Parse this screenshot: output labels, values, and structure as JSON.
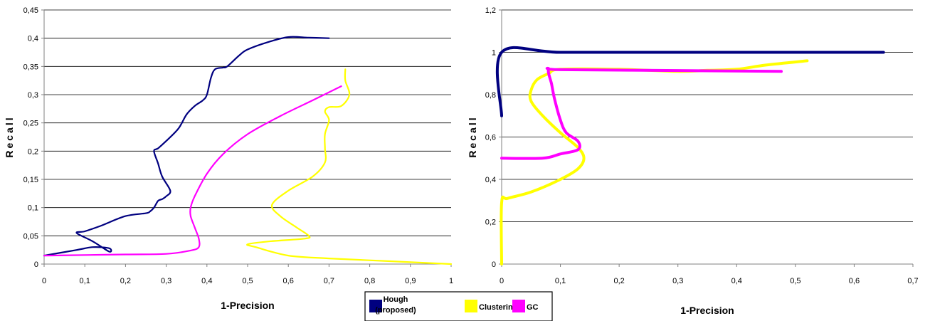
{
  "legend": {
    "items": [
      {
        "label_lines": [
          "Hough",
          "(proposed)"
        ],
        "color": "#000080"
      },
      {
        "label_lines": [
          "Clustering"
        ],
        "color": "#ffff00"
      },
      {
        "label_lines": [
          "GC"
        ],
        "color": "#ff00ff"
      }
    ]
  },
  "chart_data": [
    {
      "type": "line",
      "xlabel": "1-Precision",
      "ylabel": "Recall",
      "xlim": [
        0,
        1
      ],
      "ylim": [
        0,
        0.45
      ],
      "x_ticks": [
        0,
        0.1,
        0.2,
        0.3,
        0.4,
        0.5,
        0.6,
        0.7,
        0.8,
        0.9,
        1
      ],
      "y_ticks": [
        0,
        0.05,
        0.1,
        0.15,
        0.2,
        0.25,
        0.3,
        0.35,
        0.4,
        0.45
      ],
      "x_tick_labels": [
        "0",
        "0,1",
        "0,2",
        "0,3",
        "0,4",
        "0,5",
        "0,6",
        "0,7",
        "0,8",
        "0,9",
        "1"
      ],
      "y_tick_labels": [
        "0",
        "0,05",
        "0,1",
        "0,15",
        "0,2",
        "0,25",
        "0,3",
        "0,35",
        "0,4",
        "0,45"
      ],
      "grid": "horizontal",
      "series": [
        {
          "name": "Hough (proposed)",
          "color": "#000080",
          "x": [
            0.0,
            0.08,
            0.12,
            0.16,
            0.16,
            0.12,
            0.08,
            0.1,
            0.14,
            0.2,
            0.25,
            0.26,
            0.27,
            0.28,
            0.29,
            0.3,
            0.31,
            0.29,
            0.28,
            0.27,
            0.28,
            0.3,
            0.33,
            0.35,
            0.37,
            0.39,
            0.4,
            0.41,
            0.42,
            0.44,
            0.45,
            0.48,
            0.5,
            0.55,
            0.6,
            0.65,
            0.7
          ],
          "y": [
            0.015,
            0.025,
            0.03,
            0.028,
            0.022,
            0.04,
            0.055,
            0.058,
            0.068,
            0.085,
            0.09,
            0.093,
            0.1,
            0.112,
            0.115,
            0.12,
            0.13,
            0.155,
            0.178,
            0.2,
            0.205,
            0.218,
            0.24,
            0.265,
            0.28,
            0.29,
            0.3,
            0.33,
            0.345,
            0.348,
            0.35,
            0.37,
            0.38,
            0.393,
            0.402,
            0.401,
            0.4
          ]
        },
        {
          "name": "Clustering",
          "color": "#ffff00",
          "x": [
            1.0,
            0.85,
            0.7,
            0.6,
            0.52,
            0.5,
            0.55,
            0.64,
            0.65,
            0.62,
            0.58,
            0.56,
            0.6,
            0.66,
            0.69,
            0.69,
            0.69,
            0.7,
            0.69,
            0.7,
            0.73,
            0.75,
            0.74,
            0.74
          ],
          "y": [
            0.0,
            0.005,
            0.01,
            0.015,
            0.03,
            0.035,
            0.04,
            0.045,
            0.05,
            0.065,
            0.085,
            0.105,
            0.13,
            0.155,
            0.18,
            0.205,
            0.23,
            0.255,
            0.27,
            0.278,
            0.28,
            0.3,
            0.325,
            0.345
          ]
        },
        {
          "name": "GC",
          "color": "#ff00ff",
          "x": [
            0.0,
            0.1,
            0.2,
            0.3,
            0.36,
            0.38,
            0.38,
            0.37,
            0.36,
            0.36,
            0.37,
            0.4,
            0.44,
            0.5,
            0.58,
            0.66,
            0.73
          ],
          "y": [
            0.015,
            0.016,
            0.017,
            0.018,
            0.024,
            0.03,
            0.045,
            0.065,
            0.085,
            0.1,
            0.12,
            0.16,
            0.195,
            0.23,
            0.262,
            0.29,
            0.315
          ]
        }
      ]
    },
    {
      "type": "line",
      "xlabel": "1-Precision",
      "ylabel": "Recall",
      "xlim": [
        0,
        0.7
      ],
      "ylim": [
        0,
        1.2
      ],
      "x_ticks": [
        0,
        0.1,
        0.2,
        0.3,
        0.4,
        0.5,
        0.6,
        0.7
      ],
      "y_ticks": [
        0,
        0.2,
        0.4,
        0.6,
        0.8,
        1.0,
        1.2
      ],
      "x_tick_labels": [
        "0",
        "0,1",
        "0,2",
        "0,3",
        "0,4",
        "0,5",
        "0,6",
        "0,7"
      ],
      "y_tick_labels": [
        "0",
        "0,2",
        "0,4",
        "0,6",
        "0,8",
        "1",
        "1,2"
      ],
      "grid": "horizontal",
      "series": [
        {
          "name": "Hough (proposed)",
          "color": "#000080",
          "x": [
            0.0,
            0.0,
            0.1,
            0.3,
            0.5,
            0.65
          ],
          "y": [
            0.7,
            1.0,
            1.0,
            1.0,
            1.0,
            1.0
          ]
        },
        {
          "name": "Clustering",
          "color": "#ffff00",
          "x": [
            0.0,
            0.0,
            0.01,
            0.05,
            0.1,
            0.13,
            0.14,
            0.13,
            0.1,
            0.07,
            0.05,
            0.05,
            0.06,
            0.08,
            0.1,
            0.2,
            0.3,
            0.35,
            0.4,
            0.45,
            0.52
          ],
          "y": [
            0.0,
            0.29,
            0.31,
            0.34,
            0.4,
            0.45,
            0.5,
            0.55,
            0.62,
            0.7,
            0.77,
            0.82,
            0.87,
            0.9,
            0.92,
            0.92,
            0.91,
            0.915,
            0.92,
            0.94,
            0.96
          ]
        },
        {
          "name": "GC",
          "color": "#ff00ff",
          "x": [
            0.0,
            0.07,
            0.1,
            0.13,
            0.13,
            0.11,
            0.1,
            0.09,
            0.085,
            0.08,
            0.1,
            0.3,
            0.476
          ],
          "y": [
            0.5,
            0.5,
            0.52,
            0.54,
            0.58,
            0.62,
            0.68,
            0.78,
            0.85,
            0.92,
            0.918,
            0.914,
            0.91
          ]
        }
      ]
    }
  ]
}
